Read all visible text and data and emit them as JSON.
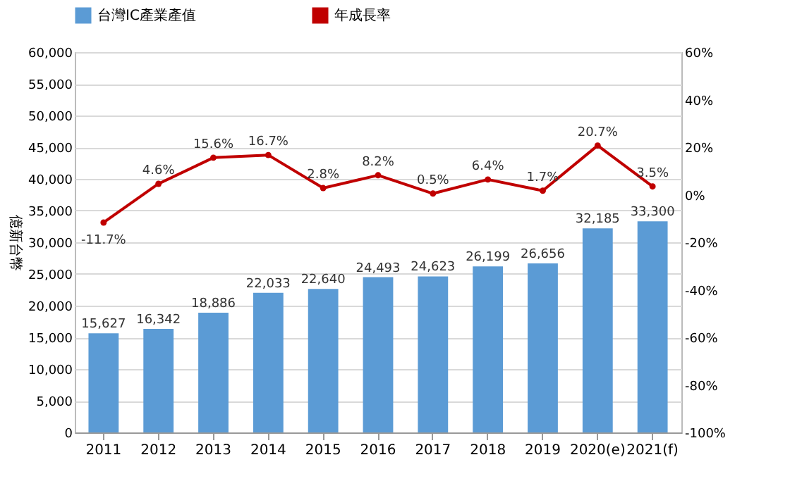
{
  "chart_data": {
    "type": "bar",
    "categories": [
      "2011",
      "2012",
      "2013",
      "2014",
      "2015",
      "2016",
      "2017",
      "2018",
      "2019",
      "2020(e)",
      "2021(f)"
    ],
    "ylabel": "億新台幣",
    "series": [
      {
        "name": "台灣IC產業產值",
        "color": "#5b9bd5",
        "values": [
          15627,
          16342,
          18886,
          22033,
          22640,
          24493,
          24623,
          26199,
          26656,
          32185,
          33300
        ],
        "value_labels": [
          "15,627",
          "16,342",
          "18,886",
          "22,033",
          "22,640",
          "24,493",
          "24,623",
          "26,199",
          "26,656",
          "32,185",
          "33,300"
        ]
      },
      {
        "name": "年成長率",
        "type": "line",
        "axis": "y2",
        "color": "#c00000",
        "marker": "circle",
        "values": [
          -11.7,
          4.6,
          15.6,
          16.7,
          2.8,
          8.2,
          0.5,
          6.4,
          1.7,
          20.7,
          3.5
        ],
        "value_labels": [
          "-11.7%",
          "4.6%",
          "15.6%",
          "16.7%",
          "2.8%",
          "8.2%",
          "0.5%",
          "6.4%",
          "1.7%",
          "20.7%",
          "3.5%"
        ]
      }
    ],
    "ylim": [
      0,
      60000
    ],
    "yticks": [
      {
        "value": 0,
        "label": "0"
      },
      {
        "value": 5000,
        "label": "5,000"
      },
      {
        "value": 10000,
        "label": "10,000"
      },
      {
        "value": 15000,
        "label": "15,000"
      },
      {
        "value": 20000,
        "label": "20,000"
      },
      {
        "value": 25000,
        "label": "25,000"
      },
      {
        "value": 30000,
        "label": "30,000"
      },
      {
        "value": 35000,
        "label": "35,000"
      },
      {
        "value": 40000,
        "label": "40,000"
      },
      {
        "value": 45000,
        "label": "45,000"
      },
      {
        "value": 50000,
        "label": "50,000"
      },
      {
        "value": 55000,
        "label": "55,000"
      },
      {
        "value": 60000,
        "label": "60,000"
      }
    ],
    "y2lim": [
      -100,
      60
    ],
    "y2ticks": [
      {
        "value": -100,
        "label": "-100%"
      },
      {
        "value": -80,
        "label": "-80%"
      },
      {
        "value": -60,
        "label": "-60%"
      },
      {
        "value": -40,
        "label": "-40%"
      },
      {
        "value": -20,
        "label": "-20%"
      },
      {
        "value": 0,
        "label": "0%"
      },
      {
        "value": 20,
        "label": "20%"
      },
      {
        "value": 40,
        "label": "40%"
      },
      {
        "value": 60,
        "label": "60%"
      }
    ],
    "grid": "y",
    "legend": "top"
  }
}
